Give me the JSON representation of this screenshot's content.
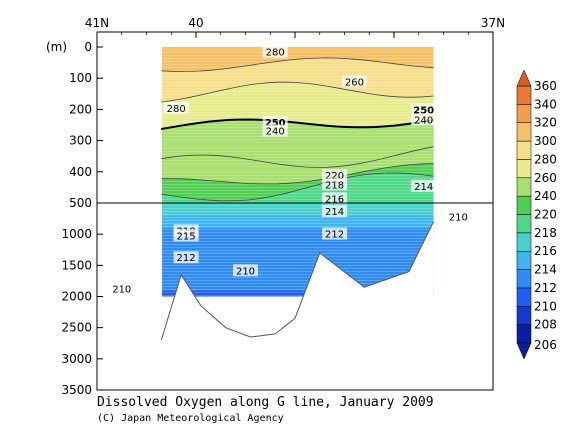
{
  "chart_data": {
    "type": "heatmap",
    "title": "Dissolved Oxygen along G line, January 2009",
    "credit": "(C) Japan Meteorological Agency",
    "ylabel": "(m)",
    "top_axis_labels": [
      {
        "text": "41N",
        "lat": 41
      },
      {
        "text": "40",
        "lat": 40
      },
      {
        "text": "37N",
        "lat": 37
      }
    ],
    "xlim_lat": [
      41,
      37
    ],
    "y_ticks_upper": [
      0,
      100,
      200,
      300,
      400,
      500
    ],
    "y_ticks_lower": [
      500,
      1000,
      1500,
      2000,
      2500,
      3000,
      3500
    ],
    "upper_depth_range": [
      0,
      500
    ],
    "lower_depth_range": [
      500,
      3500
    ],
    "colorbar": {
      "levels": [
        206,
        208,
        210,
        212,
        214,
        216,
        218,
        220,
        240,
        260,
        280,
        300,
        320,
        340,
        360
      ],
      "labels": [
        "206",
        "208",
        "210",
        "212",
        "214",
        "216",
        "218",
        "220",
        "240",
        "260",
        "280",
        "300",
        "320",
        "340",
        "360"
      ],
      "colors": [
        "#0a1fa0",
        "#1438d0",
        "#1f5ef0",
        "#2f8cf5",
        "#3fb4ee",
        "#48d2cf",
        "#4fd98b",
        "#52cf52",
        "#a8e070",
        "#e6ec8a",
        "#f6de8a",
        "#f5c165",
        "#f0a04a",
        "#ea7a35",
        "#e05a28"
      ]
    },
    "bands_upper": [
      {
        "depth": 0,
        "value": 300
      },
      {
        "depth": 60,
        "value": 280
      },
      {
        "depth": 150,
        "value": 260
      },
      {
        "depth": 260,
        "value": 250
      },
      {
        "depth": 380,
        "value": 240
      },
      {
        "depth": 440,
        "value": 220
      },
      {
        "depth": 480,
        "value": 218
      }
    ],
    "bands_lower": [
      {
        "depth": 500,
        "value": 216
      },
      {
        "depth": 700,
        "value": 214
      },
      {
        "depth": 900,
        "value": 212
      },
      {
        "depth": 1300,
        "value": 212
      },
      {
        "depth": 1900,
        "value": 210
      }
    ],
    "contour_labels": [
      {
        "text": "280",
        "depth": 15,
        "lat": 39.2
      },
      {
        "text": "260",
        "depth": 110,
        "lat": 38.4
      },
      {
        "text": "280",
        "depth": 195,
        "lat": 40.2
      },
      {
        "text": "250",
        "depth": 240,
        "lat": 39.2
      },
      {
        "text": "240",
        "depth": 268,
        "lat": 39.2
      },
      {
        "text": "250",
        "depth": 200,
        "lat": 37.7
      },
      {
        "text": "240",
        "depth": 232,
        "lat": 37.7
      },
      {
        "text": "220",
        "depth": 410,
        "lat": 38.6
      },
      {
        "text": "218",
        "depth": 440,
        "lat": 38.6
      },
      {
        "text": "214",
        "depth": 445,
        "lat": 37.7
      },
      {
        "text": "216",
        "depth": 485,
        "lat": 38.6
      },
      {
        "text": "214",
        "depth": 630,
        "lat": 38.6
      },
      {
        "text": "210",
        "depth": 720,
        "lat": 37.35
      },
      {
        "text": "218",
        "depth": 940,
        "lat": 40.1
      },
      {
        "text": "215",
        "depth": 1020,
        "lat": 40.1
      },
      {
        "text": "212",
        "depth": 990,
        "lat": 38.6
      },
      {
        "text": "212",
        "depth": 1370,
        "lat": 40.1
      },
      {
        "text": "210",
        "depth": 1580,
        "lat": 39.5
      },
      {
        "text": "210",
        "depth": 1870,
        "lat": 40.75
      }
    ],
    "data_extent": {
      "lat_start": 40.35,
      "lat_end": 37.6,
      "max_depth": 2000
    },
    "bottom_profile": [
      {
        "lat": 40.35,
        "depth": 2700
      },
      {
        "lat": 40.15,
        "depth": 1650
      },
      {
        "lat": 39.95,
        "depth": 2150
      },
      {
        "lat": 39.7,
        "depth": 2500
      },
      {
        "lat": 39.45,
        "depth": 2650
      },
      {
        "lat": 39.2,
        "depth": 2600
      },
      {
        "lat": 39.0,
        "depth": 2350
      },
      {
        "lat": 38.75,
        "depth": 1300
      },
      {
        "lat": 38.3,
        "depth": 1850
      },
      {
        "lat": 37.85,
        "depth": 1600
      },
      {
        "lat": 37.6,
        "depth": 800
      }
    ]
  }
}
